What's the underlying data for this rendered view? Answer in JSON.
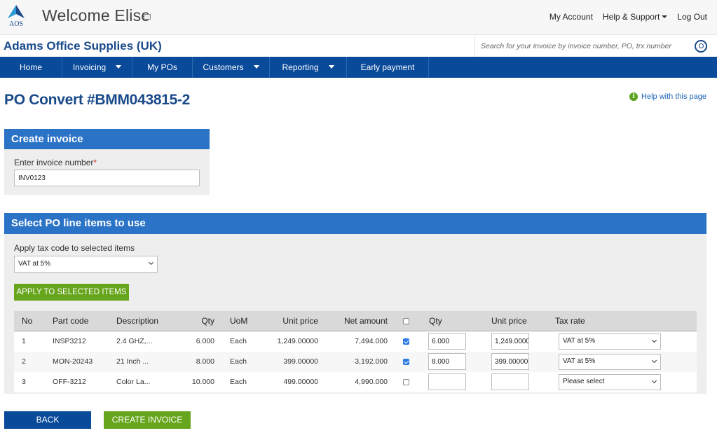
{
  "header": {
    "logo_text": "AOS",
    "welcome": "Welcome Elise",
    "links": {
      "account": "My Account",
      "help_support": "Help & Support",
      "logout": "Log Out"
    }
  },
  "brand": {
    "company": "Adams Office Supplies (UK)",
    "search_placeholder": "Search for your invoice by invoice number, PO, trx number"
  },
  "nav": {
    "items": [
      {
        "label": "Home",
        "dropdown": false
      },
      {
        "label": "Invoicing",
        "dropdown": true
      },
      {
        "label": "My POs",
        "dropdown": false
      },
      {
        "label": "Customers",
        "dropdown": true
      },
      {
        "label": "Reporting",
        "dropdown": true
      },
      {
        "label": "Early payment",
        "dropdown": false
      }
    ]
  },
  "page": {
    "title": "PO Convert #BMM043815-2",
    "help": "Help with this page",
    "help_icon": "i"
  },
  "create_invoice": {
    "heading": "Create invoice",
    "label": "Enter invoice number",
    "required_mark": "*",
    "value": "INV0123"
  },
  "po_lines": {
    "heading": "Select PO line items to use",
    "tax_label": "Apply tax code to selected items",
    "tax_selected": "VAT at 5%",
    "apply_button": "APPLY TO SELECTED ITEMS",
    "columns": {
      "no": "No",
      "part_code": "Part code",
      "description": "Description",
      "qty": "Qty",
      "uom": "UoM",
      "unit_price": "Unit price",
      "net_amount": "Net amount",
      "qty2": "Qty",
      "unit_price2": "Unit price",
      "tax_rate": "Tax rate"
    },
    "rows": [
      {
        "no": "1",
        "part_code": "INSP3212",
        "description": "2.4 GHZ,...",
        "qty": "6.000",
        "uom": "Each",
        "unit_price": "1,249.00000",
        "net_amount": "7,494.000",
        "checked": true,
        "qty_input": "6.000",
        "price_input": "1,249.0000",
        "tax_rate": "VAT at 5%"
      },
      {
        "no": "2",
        "part_code": "MON-20243",
        "description": "21 Inch ...",
        "qty": "8.000",
        "uom": "Each",
        "unit_price": "399.00000",
        "net_amount": "3,192.000",
        "checked": true,
        "qty_input": "8.000",
        "price_input": "399.00000",
        "tax_rate": "VAT at 5%"
      },
      {
        "no": "3",
        "part_code": "OFF-3212",
        "description": "Color La...",
        "qty": "10.000",
        "uom": "Each",
        "unit_price": "499.00000",
        "net_amount": "4,990.000",
        "checked": false,
        "qty_input": "",
        "price_input": "",
        "tax_rate": "Please select"
      }
    ]
  },
  "buttons": {
    "back": "BACK",
    "create": "CREATE INVOICE"
  },
  "colors": {
    "brand_blue": "#0a4a9a",
    "panel_blue": "#2a73c6",
    "green": "#66a51c"
  }
}
